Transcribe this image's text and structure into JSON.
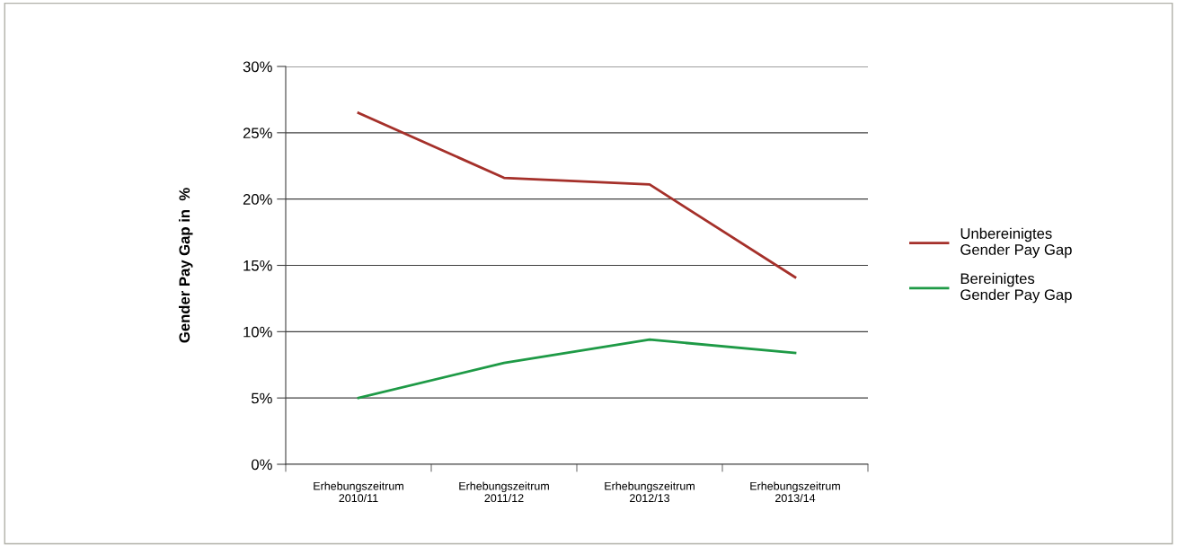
{
  "chart_data": {
    "type": "line",
    "ylabel": "Gender Pay Gap in  %",
    "categories": [
      "Erhebungszeitrum\n2010/11",
      "Erhebungszeitrum\n2011/12",
      "Erhebungszeitrum\n2012/13",
      "Erhebungszeitrum\n2013/14"
    ],
    "series": [
      {
        "name": "Unbereinigtes\nGender Pay Gap",
        "color": "#a5302a",
        "values": [
          26.5,
          21.6,
          21.1,
          14.1
        ]
      },
      {
        "name": "Bereinigtes\nGender Pay Gap",
        "color": "#1e9a46",
        "values": [
          5.0,
          7.65,
          9.4,
          8.4
        ]
      }
    ],
    "ylim": [
      0,
      30
    ],
    "yticks": [
      {
        "value": 0,
        "label": "0%"
      },
      {
        "value": 5,
        "label": "5%"
      },
      {
        "value": 10,
        "label": "10%"
      },
      {
        "value": 15,
        "label": "15%"
      },
      {
        "value": 20,
        "label": "20%"
      },
      {
        "value": 25,
        "label": "25%"
      },
      {
        "value": 30,
        "label": "30%"
      }
    ],
    "grid": "y",
    "legend": "right",
    "marker": "none",
    "line_style": "solid"
  }
}
